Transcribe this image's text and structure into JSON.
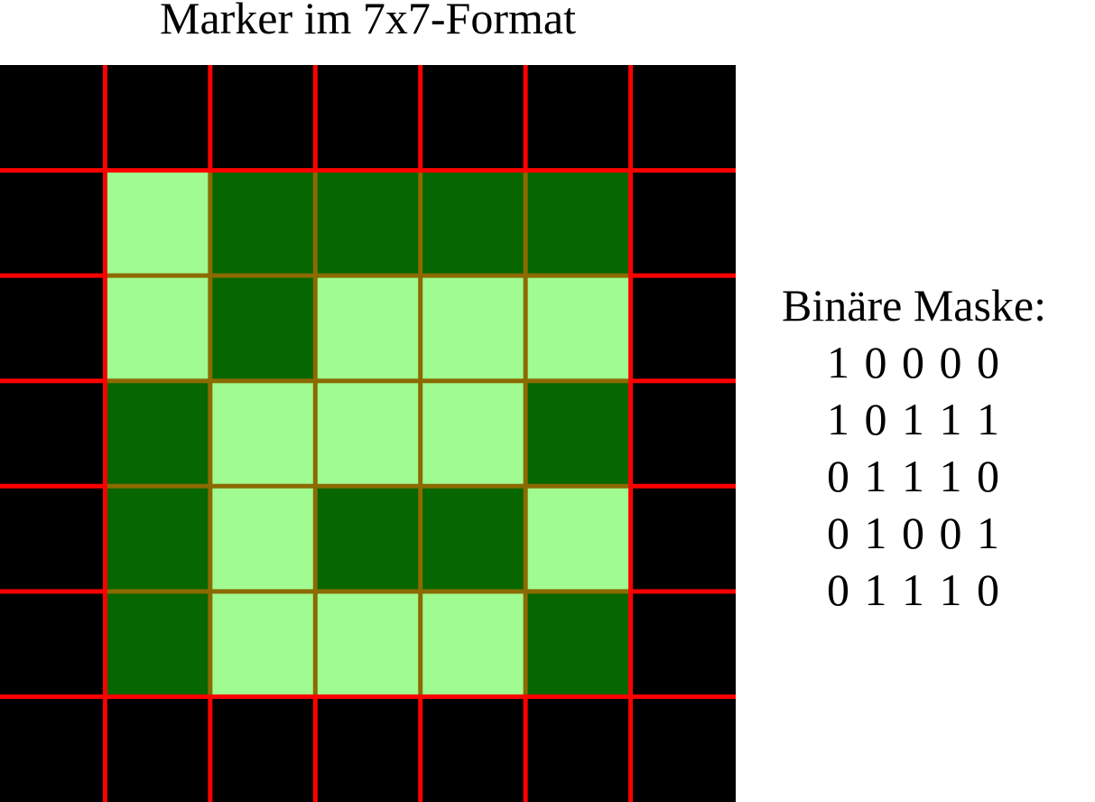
{
  "title": "Marker im 7x7-Format",
  "mask_label": "Binäre Maske:",
  "mask_rows": [
    "1 0 0 0 0",
    "1 0 1 1 1",
    "0 1 1 1 0",
    "0 1 0 0 1",
    "0 1 1 1 0"
  ],
  "mask_bits": [
    [
      1,
      0,
      0,
      0,
      0
    ],
    [
      1,
      0,
      1,
      1,
      1
    ],
    [
      0,
      1,
      1,
      1,
      0
    ],
    [
      0,
      1,
      0,
      0,
      1
    ],
    [
      0,
      1,
      1,
      1,
      0
    ]
  ],
  "grid_size": 7,
  "inner_size": 5,
  "colors": {
    "border_cell": "#000000",
    "bit_one": "#a0fb90",
    "bit_zero": "#066600",
    "outer_grid_line": "#ff0000",
    "inner_grid_line": "#8b6a00",
    "background": "#ffffff",
    "text": "#000000"
  }
}
